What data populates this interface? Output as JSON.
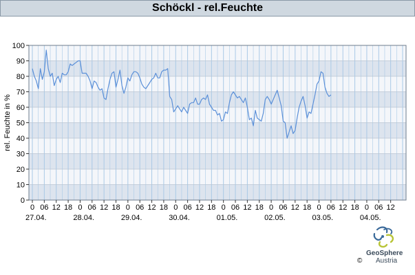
{
  "title": "Schöckl - rel.Feuchte",
  "brand": {
    "name": "GeoSphere",
    "sub": "Austria",
    "copyright": "©"
  },
  "colors": {
    "line": "#5a8fd8",
    "band_dark": "#dde4ee",
    "band_light": "#f4f6fa",
    "grid": "#a9c9e6",
    "title_bg": "#cfd8e0"
  },
  "chart_data": {
    "type": "line",
    "title": "Schöckl - rel.Feuchte",
    "xlabel": "",
    "ylabel": "rel. Feuchte in %",
    "ylim": [
      0,
      100
    ],
    "yticks": [
      0,
      10,
      20,
      30,
      40,
      50,
      60,
      70,
      80,
      90,
      100
    ],
    "xlim_hours": [
      0,
      186
    ],
    "hour_ticks": [
      "0",
      "06",
      "12",
      "18",
      "0",
      "06",
      "12",
      "18",
      "0",
      "06",
      "12",
      "18",
      "0",
      "06",
      "12",
      "18",
      "0",
      "06",
      "12",
      "18",
      "0",
      "06",
      "12",
      "18",
      "0",
      "06",
      "12",
      "18",
      "0",
      "06",
      "12"
    ],
    "date_labels": [
      "27.04.",
      "28.04.",
      "29.04.",
      "30.04.",
      "01.05.",
      "02.05.",
      "03.05.",
      "04.05."
    ],
    "grid": true,
    "series": [
      {
        "values": [
          [
            0,
            85
          ],
          [
            1,
            80
          ],
          [
            2,
            77
          ],
          [
            3,
            72
          ],
          [
            4,
            85
          ],
          [
            5,
            78
          ],
          [
            6,
            83
          ],
          [
            7,
            97
          ],
          [
            8,
            85
          ],
          [
            9,
            80
          ],
          [
            10,
            82
          ],
          [
            11,
            74
          ],
          [
            12,
            78
          ],
          [
            13,
            80
          ],
          [
            14,
            76
          ],
          [
            15,
            82
          ],
          [
            16,
            81
          ],
          [
            17,
            81
          ],
          [
            18,
            83
          ],
          [
            19,
            88
          ],
          [
            20,
            87
          ],
          [
            21,
            88
          ],
          [
            22,
            89
          ],
          [
            23,
            90
          ],
          [
            24,
            90
          ],
          [
            25,
            82
          ],
          [
            26,
            82
          ],
          [
            27,
            82
          ],
          [
            28,
            80
          ],
          [
            29,
            77
          ],
          [
            30,
            72
          ],
          [
            31,
            77
          ],
          [
            32,
            76
          ],
          [
            33,
            73
          ],
          [
            34,
            71
          ],
          [
            35,
            72
          ],
          [
            36,
            66
          ],
          [
            37,
            65
          ],
          [
            38,
            72
          ],
          [
            39,
            78
          ],
          [
            40,
            82
          ],
          [
            41,
            83
          ],
          [
            42,
            73
          ],
          [
            43,
            78
          ],
          [
            44,
            84
          ],
          [
            45,
            74
          ],
          [
            46,
            69
          ],
          [
            47,
            73
          ],
          [
            48,
            79
          ],
          [
            49,
            77
          ],
          [
            50,
            81
          ],
          [
            51,
            83
          ],
          [
            52,
            83
          ],
          [
            53,
            82
          ],
          [
            54,
            79
          ],
          [
            55,
            75
          ],
          [
            56,
            73
          ],
          [
            57,
            72
          ],
          [
            58,
            74
          ],
          [
            59,
            76
          ],
          [
            60,
            78
          ],
          [
            61,
            79
          ],
          [
            62,
            82
          ],
          [
            63,
            79
          ],
          [
            64,
            79
          ],
          [
            65,
            83
          ],
          [
            66,
            84
          ],
          [
            67,
            84
          ],
          [
            68,
            85
          ],
          [
            69,
            67
          ],
          [
            70,
            65
          ],
          [
            71,
            57
          ],
          [
            72,
            59
          ],
          [
            73,
            61
          ],
          [
            74,
            59
          ],
          [
            75,
            57
          ],
          [
            76,
            60
          ],
          [
            77,
            58
          ],
          [
            78,
            56
          ],
          [
            79,
            62
          ],
          [
            80,
            63
          ],
          [
            81,
            63
          ],
          [
            82,
            66
          ],
          [
            83,
            62
          ],
          [
            84,
            62
          ],
          [
            85,
            65
          ],
          [
            86,
            66
          ],
          [
            87,
            65
          ],
          [
            88,
            68
          ],
          [
            89,
            62
          ],
          [
            90,
            60
          ],
          [
            91,
            58
          ],
          [
            92,
            58
          ],
          [
            93,
            55
          ],
          [
            94,
            56
          ],
          [
            95,
            51
          ],
          [
            96,
            52
          ],
          [
            97,
            57
          ],
          [
            98,
            56
          ],
          [
            99,
            63
          ],
          [
            100,
            68
          ],
          [
            101,
            70
          ],
          [
            102,
            68
          ],
          [
            103,
            66
          ],
          [
            104,
            67
          ],
          [
            105,
            65
          ],
          [
            106,
            63
          ],
          [
            107,
            66
          ],
          [
            108,
            60
          ],
          [
            109,
            52
          ],
          [
            110,
            53
          ],
          [
            111,
            48
          ],
          [
            112,
            58
          ],
          [
            113,
            53
          ],
          [
            114,
            52
          ],
          [
            115,
            51
          ],
          [
            116,
            56
          ],
          [
            117,
            65
          ],
          [
            118,
            67
          ],
          [
            119,
            65
          ],
          [
            120,
            62
          ],
          [
            121,
            65
          ],
          [
            122,
            68
          ],
          [
            123,
            71
          ],
          [
            124,
            66
          ],
          [
            125,
            61
          ],
          [
            126,
            51
          ],
          [
            127,
            50
          ],
          [
            128,
            40
          ],
          [
            129,
            44
          ],
          [
            130,
            48
          ],
          [
            131,
            43
          ],
          [
            132,
            45
          ],
          [
            133,
            53
          ],
          [
            134,
            60
          ],
          [
            135,
            64
          ],
          [
            136,
            67
          ],
          [
            137,
            61
          ],
          [
            138,
            53
          ],
          [
            139,
            57
          ],
          [
            140,
            56
          ],
          [
            141,
            62
          ],
          [
            142,
            68
          ],
          [
            143,
            75
          ],
          [
            144,
            77
          ],
          [
            145,
            83
          ],
          [
            146,
            82
          ],
          [
            147,
            73
          ],
          [
            148,
            69
          ],
          [
            149,
            67
          ],
          [
            150,
            68
          ]
        ]
      }
    ]
  }
}
